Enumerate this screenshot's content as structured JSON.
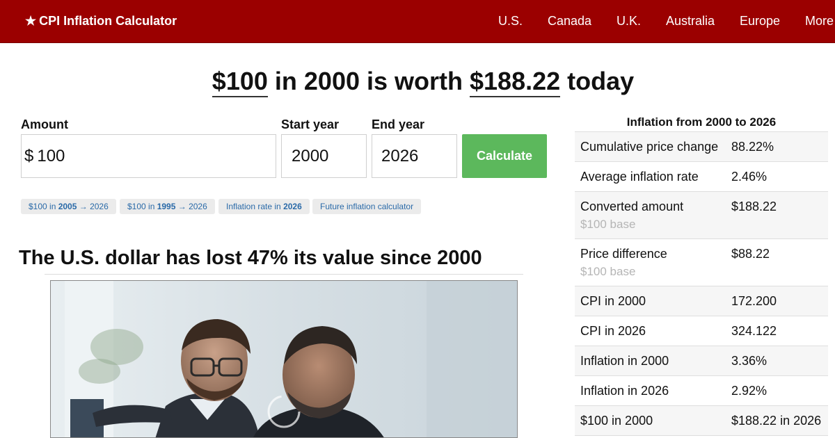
{
  "header": {
    "brand": "CPI Inflation Calculator",
    "nav": [
      "U.S.",
      "Canada",
      "U.K.",
      "Australia",
      "Europe",
      "More"
    ]
  },
  "headline": {
    "amount": "$100",
    "in_year": "in 2000 is worth",
    "worth": "$188.22",
    "suffix": "today"
  },
  "form": {
    "amount_label": "Amount",
    "currency_symbol": "$",
    "amount_value": "100",
    "start_label": "Start year",
    "start_value": "2000",
    "end_label": "End year",
    "end_value": "2026",
    "calculate_label": "Calculate"
  },
  "chips": [
    {
      "pre": "$100 in ",
      "bold": "2005",
      "post": " → 2026"
    },
    {
      "pre": "$100 in ",
      "bold": "1995",
      "post": " → 2026"
    },
    {
      "pre": "Inflation rate in ",
      "bold": "2026",
      "post": ""
    },
    {
      "pre": "Future inflation calculator",
      "bold": "",
      "post": ""
    }
  ],
  "section": {
    "title": "The U.S. dollar has lost 47% its value since 2000"
  },
  "panel": {
    "title": "Inflation from 2000 to 2026",
    "rows": [
      {
        "label": "Cumulative price change",
        "value": "88.22%",
        "sub": ""
      },
      {
        "label": "Average inflation rate",
        "value": "2.46%",
        "sub": ""
      },
      {
        "label": "Converted amount",
        "value": "$188.22",
        "sub": "$100 base"
      },
      {
        "label": "Price difference",
        "value": "$88.22",
        "sub": "$100 base"
      },
      {
        "label": "CPI in 2000",
        "value": "172.200",
        "sub": ""
      },
      {
        "label": "CPI in 2026",
        "value": "324.122",
        "sub": ""
      },
      {
        "label": "Inflation in 2000",
        "value": "3.36%",
        "sub": ""
      },
      {
        "label": "Inflation in 2026",
        "value": "2.92%",
        "sub": ""
      },
      {
        "label": "$100 in 2000",
        "value": "$188.22 in 2026",
        "sub": ""
      }
    ]
  },
  "colors": {
    "header_bg": "#9b0000",
    "calculate_bg": "#5cb85c",
    "link": "#2a6aa8"
  }
}
